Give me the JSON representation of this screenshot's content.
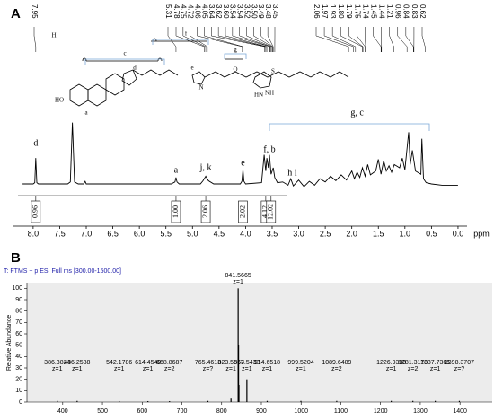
{
  "chart_data": [
    {
      "type": "nmr",
      "panel": "A",
      "x": [
        8.2,
        8.0,
        7.97,
        7.95,
        7.93,
        7.9,
        7.35,
        7.3,
        7.26,
        7.22,
        7.15,
        7.05,
        7.02,
        7.0,
        5.4,
        5.33,
        5.31,
        5.29,
        5.25,
        4.85,
        4.8,
        4.75,
        4.7,
        4.6,
        4.1,
        4.07,
        4.05,
        4.03,
        4.0,
        3.7,
        3.65,
        3.62,
        3.6,
        3.57,
        3.55,
        3.52,
        3.48,
        3.45,
        3.4,
        3.3,
        3.2,
        3.15,
        3.1,
        3.0,
        2.9,
        2.8,
        2.7,
        2.6,
        2.5,
        2.4,
        2.3,
        2.2,
        2.1,
        2.0,
        1.95,
        1.9,
        1.85,
        1.8,
        1.75,
        1.7,
        1.65,
        1.55,
        1.5,
        1.45,
        1.4,
        1.35,
        1.3,
        1.25,
        1.2,
        1.1,
        1.05,
        1.0,
        0.93,
        0.9,
        0.86,
        0.8,
        0.7,
        0.68,
        0.65,
        0.6,
        0.5,
        0.3,
        0.0
      ],
      "values": [
        0,
        0,
        2,
        40,
        2,
        0,
        0,
        3,
        95,
        3,
        0,
        0,
        4,
        0,
        0,
        3,
        10,
        3,
        0,
        0,
        5,
        12,
        5,
        0,
        0,
        4,
        22,
        4,
        0,
        2,
        45,
        20,
        40,
        25,
        45,
        15,
        25,
        10,
        2,
        3,
        -2,
        8,
        -3,
        6,
        -4,
        4,
        -2,
        8,
        3,
        12,
        5,
        14,
        6,
        20,
        8,
        18,
        10,
        25,
        12,
        30,
        14,
        20,
        38,
        15,
        36,
        20,
        28,
        18,
        30,
        25,
        40,
        22,
        80,
        30,
        52,
        20,
        15,
        70,
        8,
        2,
        0,
        -2,
        -2
      ],
      "color": "#000000",
      "xlim": [
        8.37,
        -0.17
      ],
      "ylim": [
        0,
        100
      ],
      "xticks": [
        {
          "value": 8,
          "label": "8.0"
        },
        7.5,
        {
          "value": 7,
          "label": "7.0"
        },
        6.5,
        {
          "value": 6,
          "label": "6.0"
        },
        5.5,
        {
          "value": 5,
          "label": "5.0"
        },
        4.5,
        {
          "value": 4,
          "label": "4.0"
        },
        3.5,
        {
          "value": 3,
          "label": "3.0"
        },
        2.5,
        {
          "value": 2,
          "label": "2.0"
        },
        1.5,
        {
          "value": 1,
          "label": "1.0"
        },
        0.5,
        {
          "value": 0,
          "label": "0.0"
        }
      ],
      "xlabel": "ppm",
      "peak_labels": [
        7.95,
        5.31,
        4.78,
        4.75,
        4.72,
        4.06,
        4.05,
        3.64,
        3.62,
        {
          "value": 3.6,
          "label": "3.60"
        },
        3.54,
        3.54,
        3.52,
        {
          "value": 3.5,
          "label": "3.50"
        },
        3.49,
        3.48,
        3.45,
        2.06,
        1.97,
        1.93,
        {
          "value": 1.8,
          "label": "1.80"
        },
        1.79,
        1.75,
        1.74,
        1.45,
        1.44,
        1.21,
        0.96,
        0.84,
        0.83,
        0.62
      ],
      "integral_x": [
        7.95,
        5.31,
        4.75,
        4.05,
        3.62,
        3.52
      ],
      "integral_values": [
        0.96,
        1,
        2.06,
        2.02,
        4.12,
        12.02
      ],
      "integral_value_labels": [
        "0.96",
        "1.00",
        "2.06",
        "2.02",
        "4.12",
        "12.02"
      ],
      "annotations": [
        {
          "text": "d",
          "x": 7.95
        },
        {
          "text": "a",
          "x": 5.31
        },
        {
          "text": "j, k",
          "x": 4.75
        },
        {
          "text": "e",
          "x": 4.05
        },
        {
          "text": "f, b",
          "x": 3.55
        },
        {
          "text": "h i",
          "x": 3.12
        },
        {
          "text": "g, c",
          "x": 1.9
        }
      ],
      "structure_labels": [
        "c",
        "d",
        "e",
        "f",
        "g",
        "HO",
        "a",
        "N",
        "O",
        "S",
        "HN",
        "NH",
        "H"
      ]
    },
    {
      "type": "mass",
      "panel": "B",
      "header": "T: FTMS + p ESI Full ms [300.00-1500.00]",
      "ylabel": "Relative Abundance",
      "x": [
        386.3824,
        436.2588,
        542.1786,
        614.4548,
        668.8687,
        765.4613,
        823.5567,
        841.5665,
        842.57,
        843.57,
        863.5433,
        914.6518,
        999.5204,
        1089.6489,
        1226.939,
        1281.3178,
        1337.7365,
        1398.3707
      ],
      "x_labels": [
        "386.3824",
        "436.2588",
        "542.1786",
        "614.4548",
        "668.8687",
        "765.4613",
        "823.5567",
        "841.5665",
        null,
        null,
        "863.5433",
        "914.6518",
        "999.5204",
        "1089.6489",
        "1226.9390",
        "1281.3178",
        "1337.7365",
        "1398.3707"
      ],
      "z_labels": [
        "z=1",
        "z=1",
        "z=1",
        "z=1",
        "z=2",
        "z=?",
        "z=1",
        "z=1",
        null,
        null,
        "z=1",
        "z=1",
        "z=1",
        "z=2",
        "z=1",
        "z=2",
        "z=1",
        "z=?"
      ],
      "values": [
        1,
        1,
        0.8,
        0.8,
        0.8,
        1,
        3,
        100,
        50,
        15,
        20,
        1,
        1,
        1,
        1,
        1,
        1,
        1
      ],
      "color": "#000000",
      "xlim": [
        310,
        1481
      ],
      "ylim": [
        0,
        105
      ],
      "xticks": [
        400,
        500,
        600,
        700,
        800,
        900,
        1000,
        1100,
        1200,
        1300,
        1400
      ],
      "yticks": [
        0,
        10,
        20,
        30,
        40,
        50,
        60,
        70,
        80,
        90,
        100
      ]
    }
  ]
}
